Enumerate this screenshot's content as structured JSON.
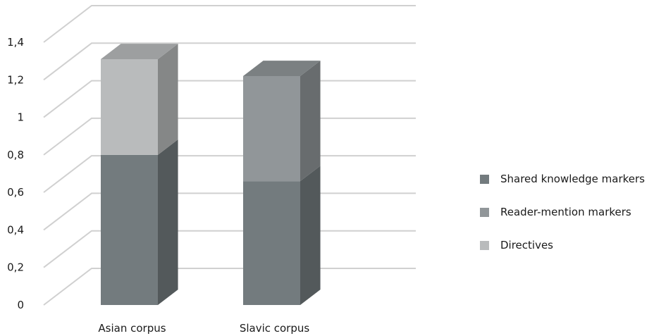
{
  "chart_data": {
    "type": "bar",
    "stacked": true,
    "three_d": true,
    "title": "",
    "xlabel": "",
    "ylabel": "",
    "categories": [
      "Asian corpus",
      "Slavic corpus"
    ],
    "series": [
      {
        "name": "Shared knowledge markers",
        "values": [
          0.8,
          0.66
        ],
        "color": "#737b7e"
      },
      {
        "name": "Reader-mention markers",
        "values": [
          0,
          0.56
        ],
        "color": "#919699"
      },
      {
        "name": "Directives",
        "values": [
          0.51,
          0
        ],
        "color": "#b9bbbc"
      }
    ],
    "ylim": [
      0,
      1.4
    ],
    "yticks": [
      "0",
      "0,2",
      "0,4",
      "0,6",
      "0,8",
      "1",
      "1,2",
      "1,4"
    ],
    "grid": true,
    "legend_position": "right"
  }
}
